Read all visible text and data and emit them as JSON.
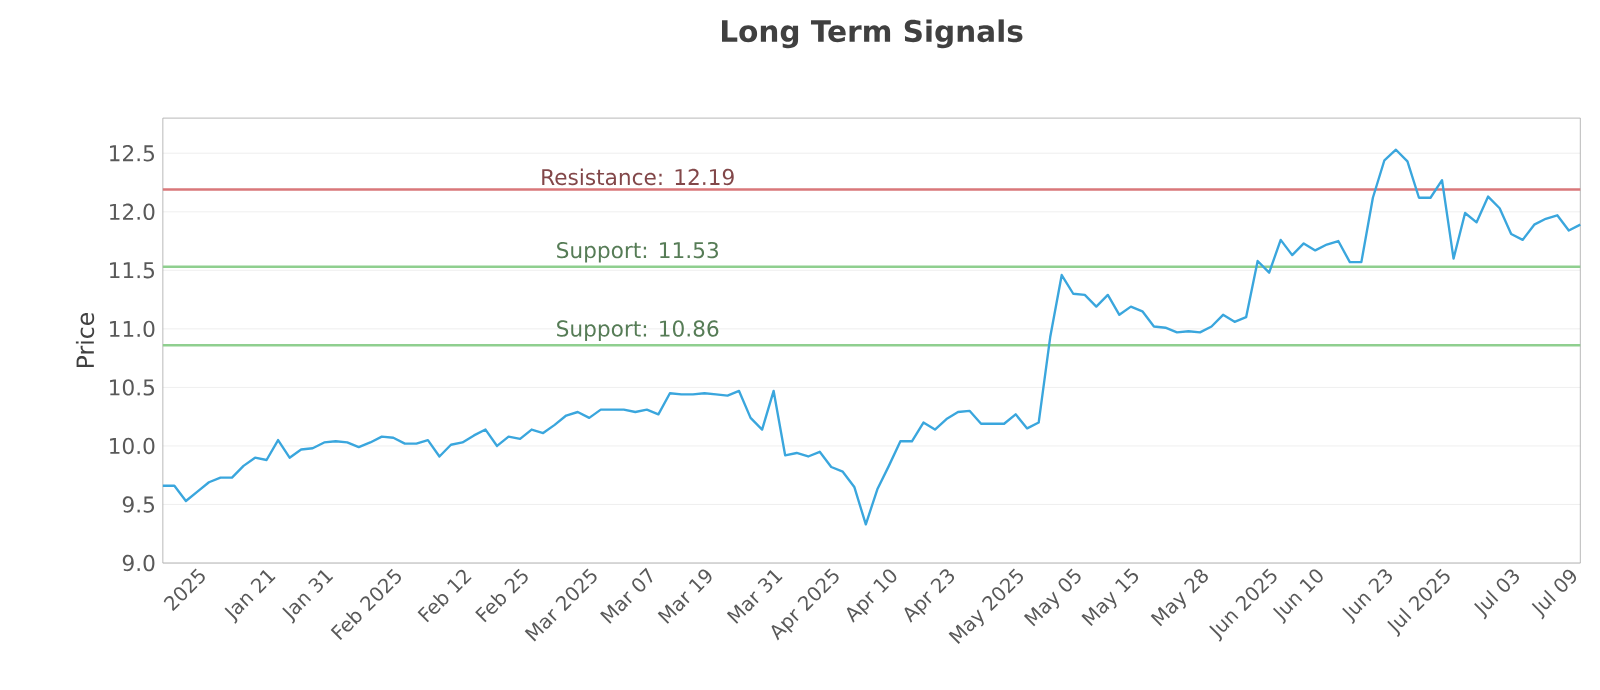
{
  "chart_data": {
    "type": "line",
    "title": "Long Term Signals",
    "ylabel": "Price",
    "categories": [
      null,
      null,
      null,
      "2025",
      null,
      null,
      null,
      null,
      null,
      "Jan 21",
      null,
      null,
      null,
      null,
      "Jan 31",
      null,
      null,
      null,
      null,
      null,
      "Feb 2025",
      null,
      null,
      null,
      null,
      null,
      "Feb 12",
      null,
      null,
      null,
      null,
      "Feb 25",
      null,
      null,
      null,
      null,
      null,
      "Mar 2025",
      null,
      null,
      null,
      null,
      "Mar 07",
      null,
      null,
      null,
      null,
      "Mar 19",
      null,
      null,
      null,
      null,
      null,
      "Mar 31",
      null,
      null,
      null,
      null,
      "Apr 2025",
      null,
      null,
      null,
      null,
      "Apr 10",
      null,
      null,
      null,
      null,
      "Apr 23",
      null,
      null,
      null,
      null,
      null,
      "May 2025",
      null,
      null,
      null,
      null,
      "May 05",
      null,
      null,
      null,
      null,
      "May 15",
      null,
      null,
      null,
      null,
      null,
      "May 28",
      null,
      null,
      null,
      null,
      null,
      "Jun 2025",
      null,
      null,
      null,
      "Jun 10",
      null,
      null,
      null,
      null,
      null,
      "Jun 23",
      null,
      null,
      null,
      null,
      "Jul 2025",
      null,
      null,
      null,
      null,
      null,
      "Jul 03",
      null,
      null,
      null,
      null,
      "Jul 09",
      null
    ],
    "series": [
      {
        "color": "#3aa6dd",
        "values": [
          9.66,
          9.66,
          9.53,
          9.61,
          9.69,
          9.73,
          9.73,
          9.83,
          9.9,
          9.88,
          10.05,
          9.9,
          9.97,
          9.98,
          10.03,
          10.04,
          10.03,
          9.99,
          10.03,
          10.08,
          10.07,
          10.02,
          10.02,
          10.05,
          9.91,
          10.01,
          10.03,
          10.09,
          10.14,
          10.0,
          10.08,
          10.06,
          10.14,
          10.11,
          10.18,
          10.26,
          10.29,
          10.24,
          10.31,
          10.31,
          10.31,
          10.29,
          10.31,
          10.27,
          10.45,
          10.44,
          10.44,
          10.45,
          10.44,
          10.43,
          10.47,
          10.24,
          10.14,
          10.47,
          9.92,
          9.94,
          9.91,
          9.95,
          9.82,
          9.78,
          9.65,
          9.33,
          9.63,
          9.83,
          10.04,
          10.04,
          10.2,
          10.14,
          10.23,
          10.29,
          10.3,
          10.19,
          10.19,
          10.19,
          10.27,
          10.15,
          10.2,
          10.93,
          11.46,
          11.3,
          11.29,
          11.19,
          11.29,
          11.12,
          11.19,
          11.15,
          11.02,
          11.01,
          10.97,
          10.98,
          10.97,
          11.02,
          11.12,
          11.06,
          11.1,
          11.58,
          11.48,
          11.76,
          11.63,
          11.73,
          11.67,
          11.72,
          11.75,
          11.57,
          11.57,
          12.12,
          12.44,
          12.53,
          12.43,
          12.12,
          12.12,
          12.27,
          11.6,
          11.99,
          11.91,
          12.13,
          12.03,
          11.81,
          11.76,
          11.89,
          11.94,
          11.97,
          11.84,
          11.89
        ]
      }
    ],
    "ylim": [
      9,
      12.8
    ],
    "yticks": [
      {
        "value": 9,
        "label": "9.0"
      },
      9.5,
      {
        "value": 10,
        "label": "10.0"
      },
      10.5,
      {
        "value": 11,
        "label": "11.0"
      },
      11.5,
      {
        "value": 12,
        "label": "12.0"
      },
      12.5
    ],
    "ref_lines": [
      {
        "axis": "y",
        "value": 12.19,
        "label": "Resistance: 12.19",
        "color": "#d9777a"
      },
      {
        "axis": "y",
        "value": 11.53,
        "label": "Support: 11.53",
        "color": "#8fcf8f"
      },
      {
        "axis": "y",
        "value": 10.86,
        "label": "Support: 10.86",
        "color": "#8fcf8f"
      }
    ],
    "grid": "y",
    "marker": "none",
    "line_style": "solid"
  }
}
